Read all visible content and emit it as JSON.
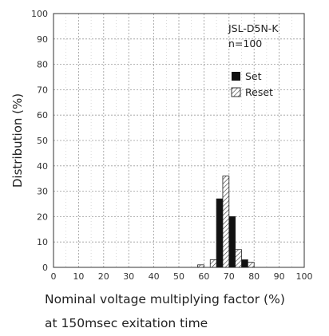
{
  "chart_data": {
    "type": "bar",
    "title": "",
    "annotation_lines": [
      "JSL-D5N-K",
      "n=100"
    ],
    "xlabel": "Nominal voltage multiplying factor (%)",
    "xlabel_line2": "at 150msec exitation time",
    "ylabel": "Distribution (%)",
    "xlim": [
      0,
      100
    ],
    "ylim": [
      0,
      100
    ],
    "xticks": [
      "0",
      "10",
      "20",
      "30",
      "40",
      "50",
      "60",
      "70",
      "80",
      "90",
      "100"
    ],
    "yticks": [
      "0",
      "10",
      "20",
      "30",
      "40",
      "50",
      "60",
      "70",
      "80",
      "90",
      "100"
    ],
    "grid": true,
    "bin_width": 2.5,
    "series": [
      {
        "name": "Set",
        "color": "#111111",
        "fill": "solid",
        "x": [
          67.5,
          72.5,
          77.5
        ],
        "values": [
          27,
          20,
          3
        ]
      },
      {
        "name": "Reset",
        "color": "#444444",
        "fill": "hatched",
        "x": [
          57.5,
          62.5,
          67.5,
          72.5,
          77.5
        ],
        "values": [
          1,
          3,
          36,
          7,
          2
        ]
      }
    ],
    "legend_position": "upper-right"
  }
}
